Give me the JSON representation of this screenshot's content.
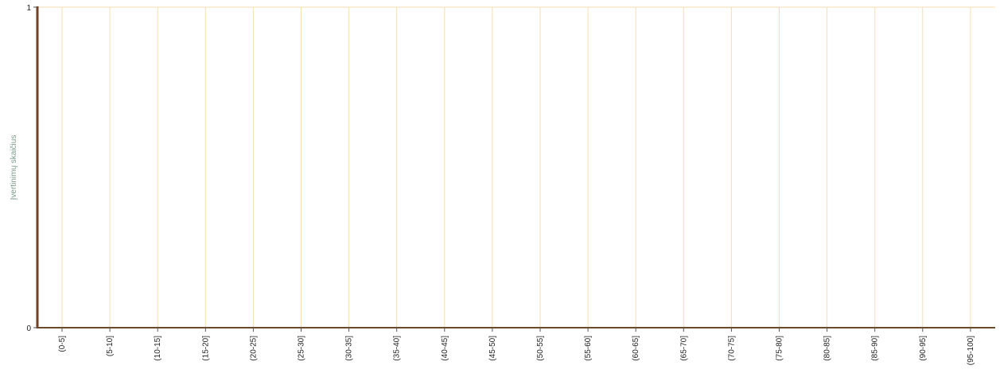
{
  "chart_data": {
    "type": "bar",
    "title": "",
    "xlabel": "",
    "ylabel": "Įvertinimų skaičius",
    "ylim": [
      0,
      1
    ],
    "y_ticks": [
      "0",
      "1"
    ],
    "grid": true,
    "categories": [
      "(0-5]",
      "(5-10]",
      "(10-15]",
      "(15-20]",
      "(20-25]",
      "(25-30]",
      "(30-35]",
      "(35-40]",
      "(40-45]",
      "(45-50]",
      "(50-55]",
      "(55-60]",
      "(60-65]",
      "(65-70]",
      "(70-75]",
      "(75-80]",
      "(80-85]",
      "(85-90]",
      "(90-95]",
      "(95-100]"
    ],
    "values": [
      0,
      0,
      0,
      0,
      0,
      0,
      0,
      0,
      0,
      0,
      0,
      0,
      0,
      0,
      0,
      0,
      0,
      0,
      0,
      0
    ],
    "colors": {
      "axis": "#7a3f1f",
      "grid": "#f5deb3",
      "baseline": "#6b4a2a",
      "ytitle": "#7a9a8a"
    }
  }
}
